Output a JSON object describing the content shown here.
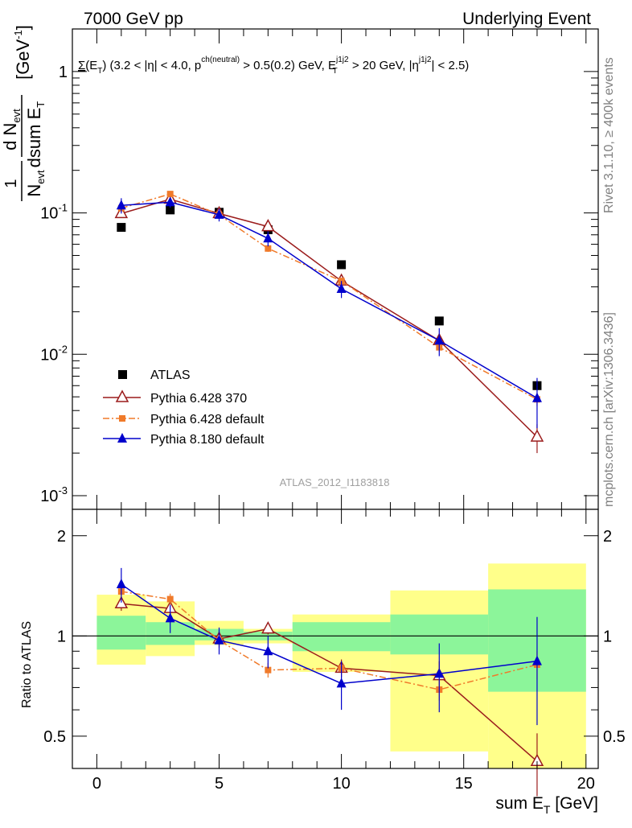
{
  "header": {
    "left": "7000 GeV pp",
    "right": "Underlying Event"
  },
  "plot_title": "Σ(E_T) (3.2 < |η| < 4.0, p^ch(neutral) > 0.5(0.2) GeV, E_T^j1j2 > 20 GeV, |η^j1j2| < 2.5)",
  "side_labels": {
    "rivet": "Rivet 3.1.10, ≥ 400k events",
    "mcplots": "mcplots.cern.ch [arXiv:1306.3436]"
  },
  "analysis_id": "ATLAS_2012_I1183818",
  "colors": {
    "atlas": "#000000",
    "py6_370": "#9b1c1c",
    "py6_default": "#f07a2a",
    "py8_default": "#0000cc",
    "band_yellow": "#ffff8a",
    "band_green": "#8cf59a"
  },
  "chart_data": [
    {
      "type": "scatter",
      "panel": "main",
      "xlabel": "sum E_T [GeV]",
      "ylabel": "1/N_evt dN_evt/dsum E_T [GeV^-1]",
      "xlim": [
        -1,
        20.5
      ],
      "ylim": [
        0.0008,
        2
      ],
      "yscale": "log",
      "y_ticks": [
        "10^-3",
        "10^-2",
        "10^-1",
        "1"
      ],
      "legend_position": "left-center",
      "series": [
        {
          "name": "ATLAS",
          "style": "square",
          "x": [
            1,
            3,
            5,
            7,
            10,
            14,
            18
          ],
          "y": [
            0.079,
            0.105,
            0.101,
            0.076,
            0.043,
            0.0172,
            0.006
          ]
        },
        {
          "name": "Pythia 6.428 370",
          "style": "open-triangle",
          "x": [
            1,
            3,
            5,
            7,
            10,
            14,
            18
          ],
          "y": [
            0.099,
            0.125,
            0.099,
            0.08,
            0.033,
            0.0125,
            0.0026
          ],
          "err": [
            0.006,
            0.006,
            0.006,
            0.004,
            0.002,
            0.001,
            0.0006
          ]
        },
        {
          "name": "Pythia 6.428 default",
          "style": "dashdot-square",
          "x": [
            1,
            3,
            5,
            7,
            10,
            14,
            18
          ],
          "y": [
            0.108,
            0.136,
            0.097,
            0.056,
            0.033,
            0.0112,
            0.0048
          ],
          "err": [
            0.004,
            0.005,
            0.004,
            0.003,
            0.0015,
            0.0008,
            0.0005
          ]
        },
        {
          "name": "Pythia 8.180 default",
          "style": "filled-triangle",
          "x": [
            1,
            3,
            5,
            7,
            10,
            14,
            18
          ],
          "y": [
            0.113,
            0.119,
            0.097,
            0.066,
            0.029,
            0.0125,
            0.0049
          ],
          "err": [
            0.014,
            0.01,
            0.01,
            0.008,
            0.004,
            0.0028,
            0.0019
          ]
        }
      ]
    },
    {
      "type": "line",
      "panel": "ratio",
      "xlabel": "sum E_T [GeV]",
      "ylabel": "Ratio to ATLAS",
      "xlim": [
        -1,
        20.5
      ],
      "ylim": [
        0.4,
        2.4
      ],
      "yscale": "log",
      "x_ticks": [
        0,
        5,
        10,
        15,
        20
      ],
      "y_ticks": [
        0.5,
        1,
        2
      ],
      "bands": [
        {
          "x0": 0,
          "x1": 2,
          "yellow": [
            0.82,
            1.33
          ],
          "green": [
            0.91,
            1.15
          ]
        },
        {
          "x0": 2,
          "x1": 4,
          "yellow": [
            0.87,
            1.27
          ],
          "green": [
            0.94,
            1.1
          ]
        },
        {
          "x0": 4,
          "x1": 6,
          "yellow": [
            0.94,
            1.11
          ],
          "green": [
            0.97,
            1.05
          ]
        },
        {
          "x0": 6,
          "x1": 8,
          "yellow": [
            0.95,
            1.05
          ],
          "green": [
            0.97,
            1.03
          ]
        },
        {
          "x0": 8,
          "x1": 12,
          "yellow": [
            0.78,
            1.16
          ],
          "green": [
            0.9,
            1.1
          ]
        },
        {
          "x0": 12,
          "x1": 16,
          "yellow": [
            0.45,
            1.37
          ],
          "green": [
            0.88,
            1.16
          ]
        },
        {
          "x0": 16,
          "x1": 20,
          "yellow": [
            0.35,
            1.65
          ],
          "green": [
            0.68,
            1.38
          ]
        }
      ],
      "series": [
        {
          "name": "Pythia 6.428 370",
          "x": [
            1,
            3,
            5,
            7,
            10,
            14,
            18
          ],
          "y": [
            1.25,
            1.21,
            0.98,
            1.05,
            0.8,
            0.76,
            0.42
          ],
          "err": [
            0.06,
            0.06,
            0.06,
            0.04,
            0.05,
            0.08,
            0.09
          ]
        },
        {
          "name": "Pythia 6.428 default",
          "x": [
            1,
            3,
            5,
            7,
            10,
            14,
            18
          ],
          "y": [
            1.36,
            1.29,
            0.97,
            0.79,
            0.8,
            0.69,
            0.82
          ],
          "err": [
            0.05,
            0.05,
            0.04,
            0.04,
            0.04,
            0.05,
            0.08
          ]
        },
        {
          "name": "Pythia 8.180 default",
          "x": [
            1,
            3,
            5,
            7,
            10,
            14,
            18
          ],
          "y": [
            1.43,
            1.13,
            0.97,
            0.9,
            0.72,
            0.77,
            0.84
          ],
          "err": [
            0.17,
            0.11,
            0.09,
            0.1,
            0.12,
            0.18,
            0.3
          ]
        }
      ]
    }
  ]
}
